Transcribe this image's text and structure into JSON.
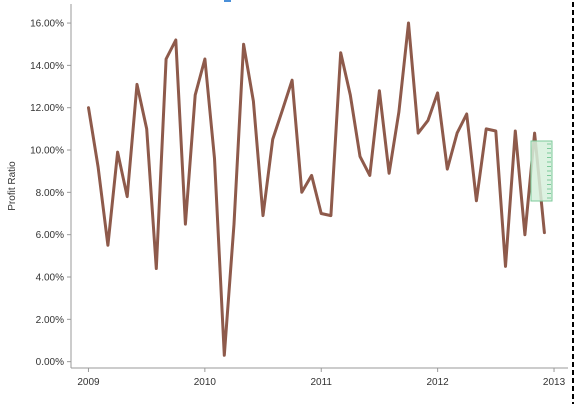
{
  "chart_data": {
    "type": "line",
    "title": "",
    "xlabel": "",
    "ylabel": "Profit Ratio",
    "y_tick_labels": [
      "0.00%",
      "2.00%",
      "4.00%",
      "6.00%",
      "8.00%",
      "10.00%",
      "12.00%",
      "14.00%",
      "16.00%"
    ],
    "y_ticks": [
      0,
      2,
      4,
      6,
      8,
      10,
      12,
      14,
      16
    ],
    "ylim": [
      -0.3,
      16.9
    ],
    "x_tick_labels": [
      "2009",
      "2010",
      "2011",
      "2012",
      "2013"
    ],
    "x_ticks": [
      2009,
      2010,
      2011,
      2012,
      2013
    ],
    "xlim": [
      2008.85,
      2013.12
    ],
    "grid": false,
    "series": [
      {
        "color": "#8e5a4b",
        "x": [
          2009.0,
          2009.083,
          2009.167,
          2009.25,
          2009.333,
          2009.417,
          2009.5,
          2009.583,
          2009.667,
          2009.75,
          2009.833,
          2009.917,
          2010.0,
          2010.083,
          2010.167,
          2010.25,
          2010.333,
          2010.417,
          2010.5,
          2010.583,
          2010.667,
          2010.75,
          2010.833,
          2010.917,
          2011.0,
          2011.083,
          2011.167,
          2011.25,
          2011.333,
          2011.417,
          2011.5,
          2011.583,
          2011.667,
          2011.75,
          2011.833,
          2011.917,
          2012.0,
          2012.083,
          2012.167,
          2012.25,
          2012.333,
          2012.417,
          2012.5,
          2012.583,
          2012.667,
          2012.75,
          2012.833,
          2012.917
        ],
        "values": [
          12.0,
          9.2,
          5.5,
          9.9,
          7.8,
          13.1,
          11.0,
          4.4,
          14.3,
          15.2,
          6.5,
          12.6,
          14.3,
          9.6,
          0.3,
          6.5,
          15.0,
          12.3,
          6.9,
          10.5,
          11.9,
          13.3,
          8.0,
          8.8,
          7.0,
          6.9,
          14.6,
          12.6,
          9.7,
          8.8,
          12.8,
          8.9,
          11.8,
          16.0,
          10.8,
          11.4,
          12.7,
          9.1,
          10.8,
          11.7,
          7.6,
          11.0,
          10.9,
          4.5,
          10.9,
          6.0,
          10.8,
          6.1
        ]
      }
    ]
  },
  "colors": {
    "line": "#8e5a4b",
    "axis": "#9a9a9a",
    "frame_dash": "#000000",
    "highlight_fill": "#d6f0dc",
    "highlight_stroke": "#7cc99a",
    "marker": "#4a90d9"
  }
}
